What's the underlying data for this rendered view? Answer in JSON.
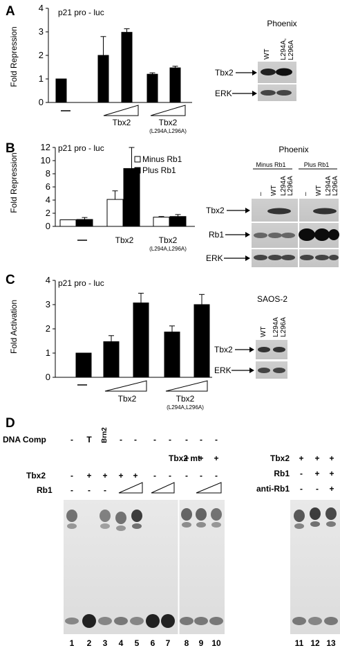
{
  "panels": {
    "A": {
      "letter": "A",
      "chart_label": "p21 pro - luc",
      "ylabel": "Fold Repression",
      "chart_data": {
        "type": "bar",
        "ylim": [
          0,
          4
        ],
        "yticks": [
          "0",
          "1",
          "2",
          "3",
          "4"
        ],
        "values": [
          1.0,
          2.0,
          2.98,
          1.2,
          1.47
        ],
        "errors": [
          0,
          0.8,
          0.15,
          0.06,
          0.07
        ],
        "xlabels": [
          "—",
          "Tbx2",
          "Tbx2",
          "(L294A,L296A)"
        ]
      },
      "blot": {
        "title": "Phoenix",
        "lanes": [
          "WT",
          "L294A, L296A"
        ],
        "rows": [
          "Tbx2",
          "ERK"
        ]
      }
    },
    "B": {
      "letter": "B",
      "chart_label": "p21 pro - luc",
      "ylabel": "Fold Repression",
      "chart_data": {
        "type": "bar",
        "ylim": [
          0,
          12
        ],
        "yticks": [
          "0",
          "2",
          "4",
          "6",
          "8",
          "10",
          "12"
        ],
        "categories": [
          "—",
          "Tbx2",
          "Tbx2"
        ],
        "sub_label": "(L294A,L296A)",
        "series": [
          {
            "name": "Minus Rb1",
            "values": [
              1.0,
              4.1,
              1.4
            ],
            "errors": [
              0,
              1.3,
              0.1
            ],
            "color": "#ffffff"
          },
          {
            "name": "Plus Rb1",
            "values": [
              1.05,
              8.8,
              1.5
            ],
            "errors": [
              0.3,
              3.2,
              0.3
            ],
            "color": "#000000"
          }
        ]
      },
      "blot": {
        "title": "Phoenix",
        "groups": [
          "Minus Rb1",
          "Plus Rb1"
        ],
        "lanes": [
          "–",
          "WT",
          "L294A",
          "L296A",
          "–",
          "WT",
          "L294A",
          "L296A"
        ],
        "rows": [
          "Tbx2",
          "Rb1",
          "ERK"
        ]
      }
    },
    "C": {
      "letter": "C",
      "chart_label": "p21 pro - luc",
      "ylabel": "Fold Activation",
      "chart_data": {
        "type": "bar",
        "ylim": [
          0,
          4
        ],
        "yticks": [
          "0",
          "1",
          "2",
          "3",
          "4"
        ],
        "values": [
          1.0,
          1.47,
          3.07,
          1.87,
          3.0
        ],
        "errors": [
          0,
          0.25,
          0.4,
          0.25,
          0.42
        ],
        "xlabels": [
          "—",
          "Tbx2",
          "Tbx2",
          "(L294A,L296A)"
        ]
      },
      "blot": {
        "title": "SAOS-2",
        "lanes": [
          "WT",
          "L294A",
          "L296A"
        ],
        "rows": [
          "Tbx2",
          "ERK"
        ]
      }
    },
    "D": {
      "letter": "D",
      "row_labels": [
        "DNA Comp",
        "Tbx2 mt",
        "Tbx2",
        "Rb1"
      ],
      "dna_comp": [
        "-",
        "T",
        "Brn2",
        "-",
        "-",
        "-",
        "-",
        "-",
        "-",
        "-"
      ],
      "tbx2mt": [
        "+",
        "+",
        "+"
      ],
      "tbx2": [
        "-",
        "+",
        "+",
        "+",
        "+"
      ],
      "rb1": [
        "-",
        "-",
        "-"
      ],
      "tbx2mt_minus": [
        "-",
        "-"
      ],
      "lane_numbers_left": [
        "1",
        "2",
        "3",
        "4",
        "5",
        "6",
        "7",
        "8",
        "9",
        "10"
      ],
      "right_labels": [
        "Tbx2",
        "Rb1",
        "anti-Rb1"
      ],
      "right_tbx2": [
        "+",
        "+",
        "+"
      ],
      "right_rb1": [
        "-",
        "+",
        "+"
      ],
      "right_anti": [
        "-",
        "-",
        "+"
      ],
      "lane_numbers_right": [
        "11",
        "12",
        "13"
      ]
    }
  }
}
